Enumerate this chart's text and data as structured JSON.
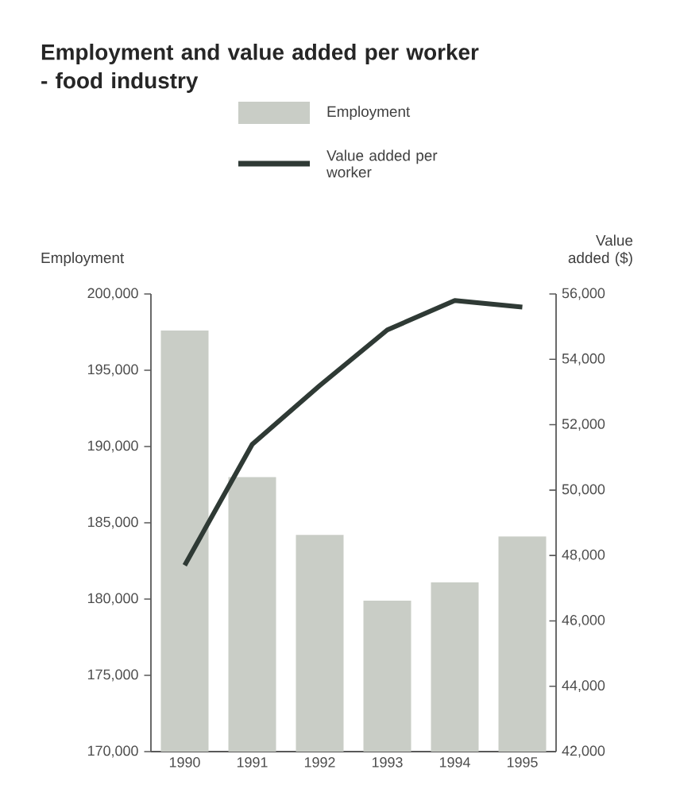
{
  "chart_data": {
    "type": "bar",
    "title": "Employment and value added per worker - food industry",
    "categories": [
      "1990",
      "1991",
      "1992",
      "1993",
      "1994",
      "1995"
    ],
    "series": [
      {
        "name": "Employment",
        "color": "#c9cdc6",
        "values": [
          197600,
          188000,
          184200,
          179900,
          181100,
          184100
        ]
      },
      {
        "name": "Value added per worker",
        "type": "line",
        "axis": "y2",
        "color": "#2f3a35",
        "values": [
          47700,
          51400,
          53200,
          54900,
          55800,
          55600
        ]
      }
    ],
    "ylabel": "Employment",
    "y2label": "Value added ($)",
    "ylim": [
      170000,
      200000
    ],
    "yticks": [
      {
        "value": 170000,
        "label": "170,000"
      },
      {
        "value": 175000,
        "label": "175,000"
      },
      {
        "value": 180000,
        "label": "180,000"
      },
      {
        "value": 185000,
        "label": "185,000"
      },
      {
        "value": 190000,
        "label": "190,000"
      },
      {
        "value": 195000,
        "label": "195,000"
      },
      {
        "value": 200000,
        "label": "200,000"
      }
    ],
    "y2lim": [
      42000,
      56000
    ],
    "y2ticks": [
      {
        "value": 42000,
        "label": "42,000"
      },
      {
        "value": 44000,
        "label": "44,000"
      },
      {
        "value": 46000,
        "label": "46,000"
      },
      {
        "value": 48000,
        "label": "48,000"
      },
      {
        "value": 50000,
        "label": "50,000"
      },
      {
        "value": 52000,
        "label": "52,000"
      },
      {
        "value": 54000,
        "label": "54,000"
      },
      {
        "value": 56000,
        "label": "56,000"
      }
    ],
    "legend": "top",
    "grid": false
  }
}
